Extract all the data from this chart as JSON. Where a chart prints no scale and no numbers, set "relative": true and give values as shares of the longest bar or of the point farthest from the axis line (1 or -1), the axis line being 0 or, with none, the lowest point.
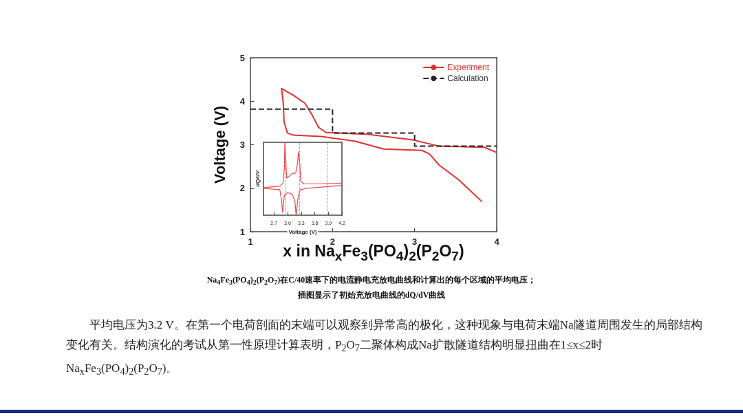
{
  "chart_data": [
    {
      "type": "line",
      "xlabel": "x in Na$_{x}$Fe$_{3}$(PO$_{4}$)$_{2}$(P$_{2}$O$_{7}$)",
      "ylabel": "Voltage (V)",
      "xlim": [
        1,
        4
      ],
      "xticks": [
        1,
        2,
        3,
        4
      ],
      "ylim": [
        1,
        5
      ],
      "yticks": [
        1,
        2,
        3,
        4,
        5
      ],
      "grid": false,
      "legend": "top right",
      "series": [
        {
          "name": "Experiment",
          "color": "#e0302f",
          "line_style": "solid",
          "x": [
            4,
            3.85,
            3.29,
            2.98,
            2.42,
            1.92,
            1.83,
            1.75,
            1.66,
            1.52,
            1.38,
            1.4,
            1.41,
            1.45,
            1.52,
            1.86,
            2.28,
            2.62,
            3.09,
            3.18,
            3.3,
            3.54,
            3.82
          ],
          "values": [
            2.82,
            2.94,
            2.97,
            3.11,
            3.24,
            3.28,
            3.4,
            3.69,
            3.96,
            4.14,
            4.29,
            3.96,
            3.53,
            3.27,
            3.22,
            3.19,
            3.08,
            2.9,
            2.87,
            2.79,
            2.53,
            2.19,
            1.69
          ]
        },
        {
          "name": "Calculation",
          "color": "#222222",
          "line_style": "dashed",
          "x": [
            1,
            2,
            2,
            3,
            3,
            4
          ],
          "values": [
            3.82,
            3.82,
            3.27,
            3.27,
            2.97,
            2.97
          ]
        }
      ],
      "annotations": [
        "Na$_{4}$Fe$_{3}$(PO$_{4}$)$_{2}$(P$_{2}$O$_{7}$)在C/40速率下的电流静电充放电曲线和计算出的每个区域的平均电压；",
        "插图显示了初始充放电曲线的dQ/dV曲线",
        "平均电压为3.2 V。在第一个电荷剖面的末端可以观察到异常高的极化，这种现象与电荷末端Na隧道周围发生的局部结构变化有关。结构演化的考试从第一性原理计算表明，P$_{2}$O$_{7}$二聚体构成Na扩散隧道结构明显扭曲在1≤x≤2时Na$_{x}$Fe$_{3}$(PO$_{4}$)$_{2}$(P$_{2}$O$_{7}$)。"
      ]
    },
    {
      "type": "line",
      "xlabel": "Voltage (V)",
      "ylabel": "dQ/dV",
      "relative": true,
      "xlim": [
        2.47,
        4.2
      ],
      "xticks": [
        2.7,
        {
          "value": 3,
          "label": "3.0"
        },
        3.3,
        3.6,
        3.9,
        4.2
      ],
      "grid": false,
      "tick_labels": "x",
      "series": [
        {
          "color": "#e8484b",
          "x": [
            2.47,
            2.83,
            2.9,
            2.93,
            2.94,
            2.96,
            2.98,
            3.03,
            3.1,
            3.18,
            3.22,
            3.24,
            3.27,
            3.29,
            3.36,
            3.68,
            4.2
          ],
          "values": [
            0.38,
            0.4,
            0.44,
            0.64,
            1,
            0.78,
            0.51,
            0.53,
            0.57,
            0.58,
            0.71,
            0.87,
            0.71,
            0.47,
            0.43,
            0.43,
            0.44
          ]
        },
        {
          "color": "#e8484b",
          "x": [
            4.2,
            3.43,
            3.28,
            3.23,
            3.19,
            3.16,
            3.1,
            3.0,
            2.93,
            2.89,
            2.87,
            2.83,
            2.47
          ],
          "values": [
            0.41,
            0.37,
            0.35,
            0.24,
            0,
            0.2,
            0.29,
            0.31,
            0.27,
            0.04,
            0.2,
            0.35,
            0.37
          ]
        }
      ],
      "ref_lines": [
        {
          "axis": "x",
          "value": 2.95,
          "color": "#888888",
          "line_style": "dotted"
        },
        {
          "axis": "x",
          "value": 3.26,
          "color": "#888888",
          "line_style": "dotted"
        },
        {
          "axis": "x",
          "value": 3.89,
          "color": "#888888",
          "line_style": "dotted"
        }
      ]
    }
  ]
}
